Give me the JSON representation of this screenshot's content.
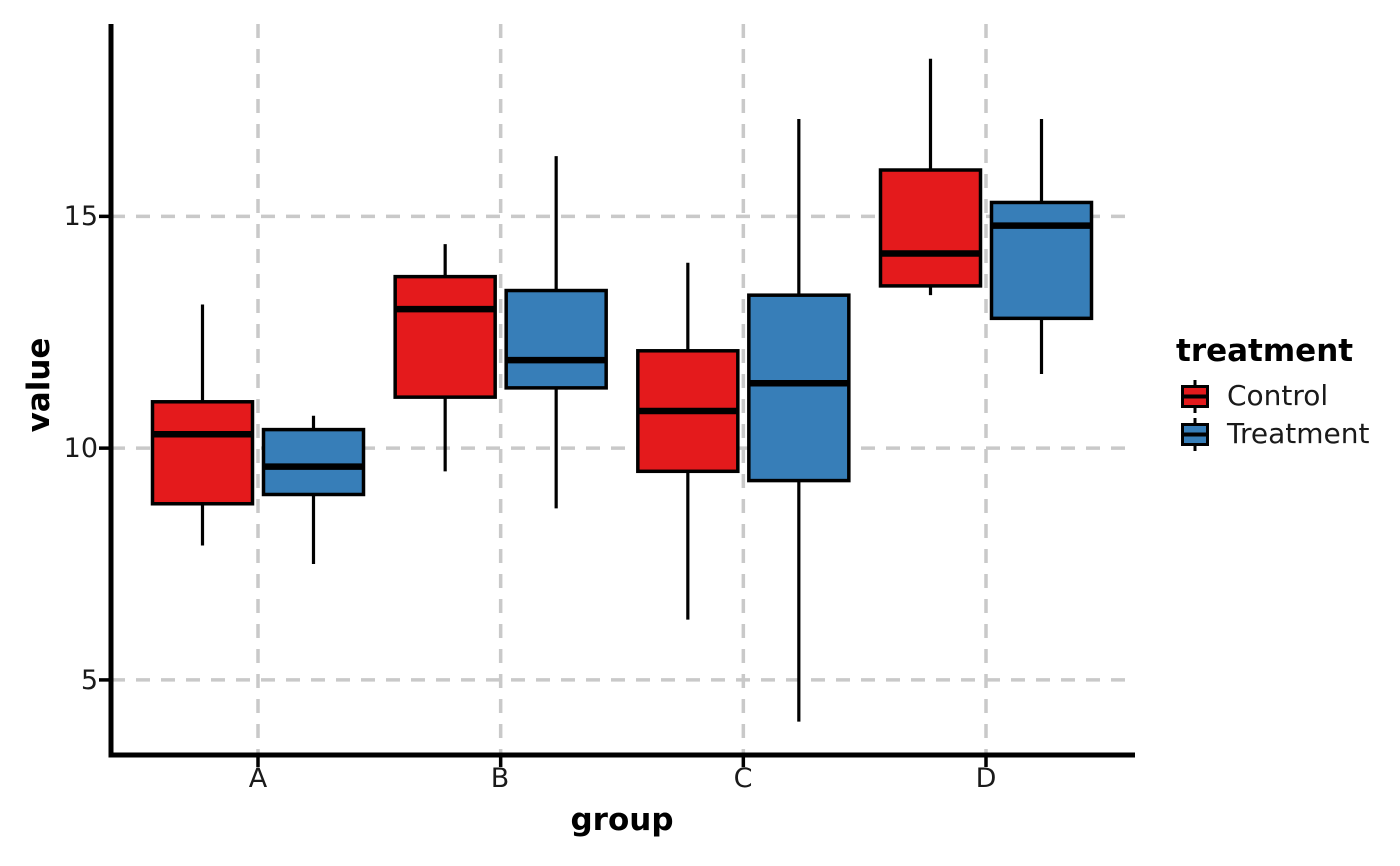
{
  "chart_data": {
    "type": "boxplot",
    "title": "",
    "xlabel": "group",
    "ylabel": "value",
    "categories": [
      "A",
      "B",
      "C",
      "D"
    ],
    "yticks": [
      5,
      10,
      15
    ],
    "ylim": [
      3.38,
      19.15
    ],
    "grid": {
      "shown": true,
      "style": "dashed",
      "color": "#c9c9c9"
    },
    "legend": {
      "title": "treatment",
      "position": "right",
      "entries": [
        {
          "label": "Control",
          "color": "#E41A1C"
        },
        {
          "label": "Treatment",
          "color": "#377EB8"
        }
      ]
    },
    "series": [
      {
        "name": "Control",
        "color": "#E41A1C",
        "boxes": [
          {
            "category": "A",
            "min": 7.9,
            "q1": 8.8,
            "median": 10.3,
            "q3": 11.0,
            "max": 13.1
          },
          {
            "category": "B",
            "min": 9.5,
            "q1": 11.1,
            "median": 13.0,
            "q3": 13.7,
            "max": 14.4
          },
          {
            "category": "C",
            "min": 6.3,
            "q1": 9.5,
            "median": 10.8,
            "q3": 12.1,
            "max": 14.0
          },
          {
            "category": "D",
            "min": 13.3,
            "q1": 13.5,
            "median": 14.2,
            "q3": 16.0,
            "max": 18.4
          }
        ]
      },
      {
        "name": "Treatment",
        "color": "#377EB8",
        "boxes": [
          {
            "category": "A",
            "min": 7.5,
            "q1": 9.0,
            "median": 9.6,
            "q3": 10.4,
            "max": 10.7
          },
          {
            "category": "B",
            "min": 8.7,
            "q1": 11.3,
            "median": 11.9,
            "q3": 13.4,
            "max": 16.3
          },
          {
            "category": "C",
            "min": 4.1,
            "q1": 9.3,
            "median": 11.4,
            "q3": 13.3,
            "max": 17.1
          },
          {
            "category": "D",
            "min": 11.6,
            "q1": 12.8,
            "median": 14.8,
            "q3": 15.3,
            "max": 17.1
          }
        ]
      }
    ],
    "colors": {
      "box_border": "#000000",
      "median_line": "#000000",
      "axis_line": "#000000"
    }
  }
}
